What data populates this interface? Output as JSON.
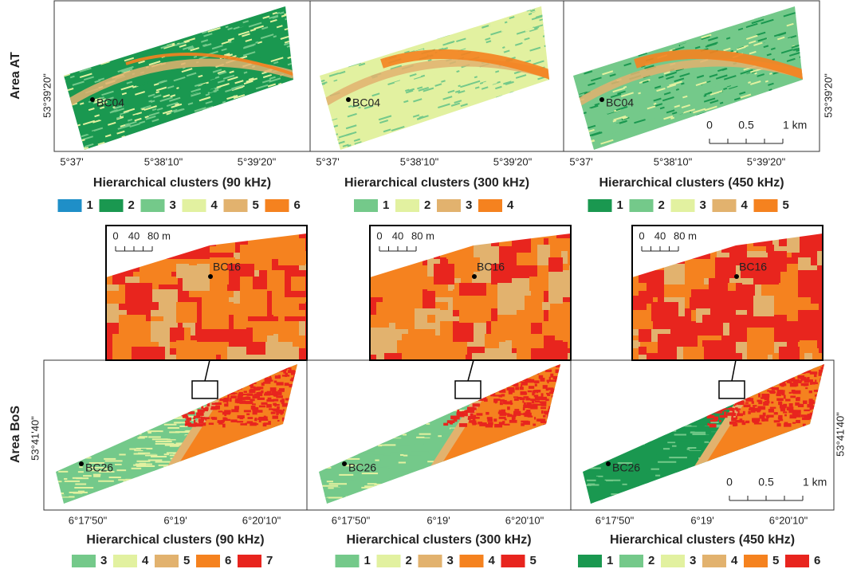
{
  "rows": [
    {
      "label": "Area AT",
      "lat_label": "53°39'20\"",
      "lon_labels": [
        "5°37'",
        "5°38'10\"",
        "5°39'20\""
      ],
      "station": "BC04",
      "panels": [
        {
          "title": "Hierarchical clusters (90 kHz)",
          "legend": [
            {
              "label": "1",
              "color": "#1f8fc8"
            },
            {
              "label": "2",
              "color": "#1a9850"
            },
            {
              "label": "3",
              "color": "#74c98a"
            },
            {
              "label": "4",
              "color": "#e2f1a0"
            },
            {
              "label": "5",
              "color": "#e2b26e"
            },
            {
              "label": "6",
              "color": "#f5821f"
            }
          ]
        },
        {
          "title": "Hierarchical clusters (300 kHz)",
          "legend": [
            {
              "label": "1",
              "color": "#74c98a"
            },
            {
              "label": "2",
              "color": "#e2f1a0"
            },
            {
              "label": "3",
              "color": "#e2b26e"
            },
            {
              "label": "4",
              "color": "#f5821f"
            }
          ]
        },
        {
          "title": "Hierarchical clusters (450 kHz)",
          "legend": [
            {
              "label": "1",
              "color": "#1a9850"
            },
            {
              "label": "2",
              "color": "#74c98a"
            },
            {
              "label": "3",
              "color": "#e2f1a0"
            },
            {
              "label": "4",
              "color": "#e2b26e"
            },
            {
              "label": "5",
              "color": "#f5821f"
            }
          ]
        }
      ]
    },
    {
      "label": "Area BoS",
      "lat_label": "53°41'40\"",
      "lon_labels": [
        "6°17'50\"",
        "6°19'",
        "6°20'10\""
      ],
      "station": "BC26",
      "panels": [
        {
          "title": "Hierarchical clusters (90 kHz)",
          "legend": [
            {
              "label": "3",
              "color": "#74c98a"
            },
            {
              "label": "4",
              "color": "#e2f1a0"
            },
            {
              "label": "5",
              "color": "#e2b26e"
            },
            {
              "label": "6",
              "color": "#f5821f"
            },
            {
              "label": "7",
              "color": "#e8251e"
            }
          ]
        },
        {
          "title": "Hierarchical clusters (300 kHz)",
          "legend": [
            {
              "label": "1",
              "color": "#74c98a"
            },
            {
              "label": "2",
              "color": "#e2f1a0"
            },
            {
              "label": "3",
              "color": "#e2b26e"
            },
            {
              "label": "4",
              "color": "#f5821f"
            },
            {
              "label": "5",
              "color": "#e8251e"
            }
          ]
        },
        {
          "title": "Hierarchical clusters (450 kHz)",
          "legend": [
            {
              "label": "1",
              "color": "#1a9850"
            },
            {
              "label": "2",
              "color": "#74c98a"
            },
            {
              "label": "3",
              "color": "#e2f1a0"
            },
            {
              "label": "4",
              "color": "#e2b26e"
            },
            {
              "label": "5",
              "color": "#f5821f"
            },
            {
              "label": "6",
              "color": "#e8251e"
            }
          ]
        }
      ]
    }
  ],
  "scale_bar": [
    "0",
    "0.5",
    "1 km"
  ],
  "inset": {
    "scale": [
      "0",
      "40",
      "80 m"
    ],
    "station": "BC16"
  }
}
